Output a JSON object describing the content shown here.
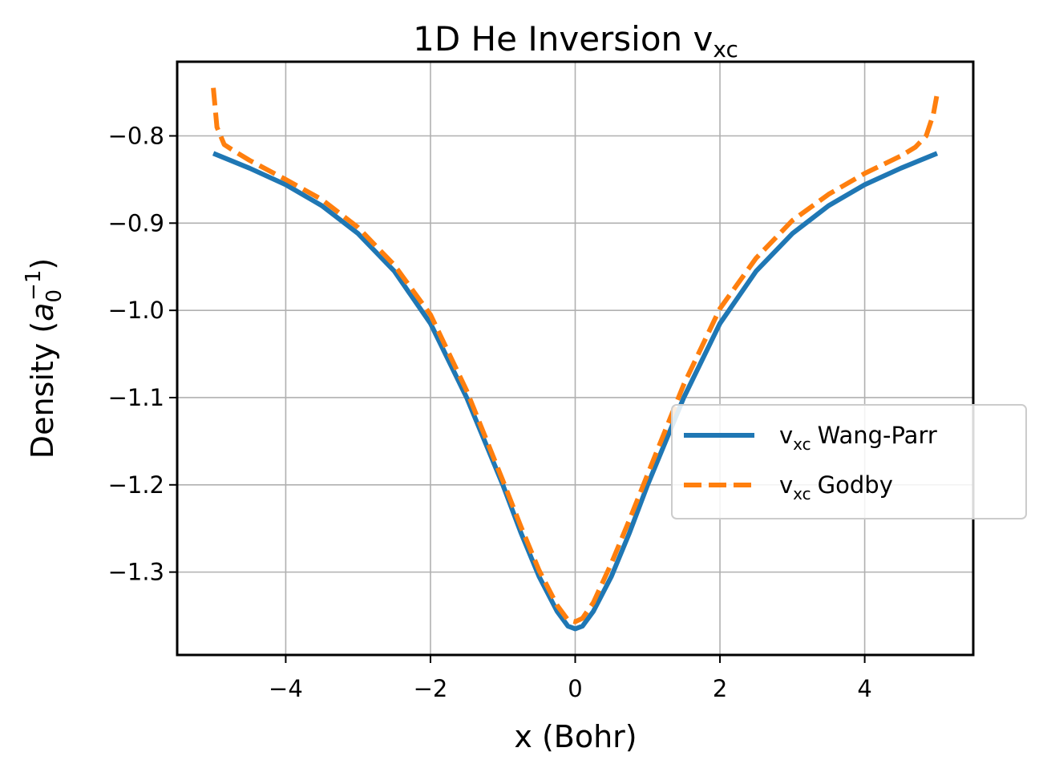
{
  "chart_data": {
    "type": "line",
    "title": "1D He Inversion v",
    "title_sub": "xc",
    "xlabel": "x (Bohr)",
    "ylabel_prefix": "Density (",
    "ylabel_base": "a",
    "ylabel_sub": "0",
    "ylabel_sup": "−1",
    "ylabel_suffix": ")",
    "xlim": [
      -5.5,
      5.5
    ],
    "ylim": [
      -1.395,
      -0.715
    ],
    "xticks": [
      -4,
      -2,
      0,
      2,
      4
    ],
    "xtick_labels": [
      "−4",
      "−2",
      "0",
      "2",
      "4"
    ],
    "yticks": [
      -0.8,
      -0.9,
      -1.0,
      -1.1,
      -1.2,
      -1.3
    ],
    "ytick_labels": [
      "−0.8",
      "−0.9",
      "−1.0",
      "−1.1",
      "−1.2",
      "−1.3"
    ],
    "grid": true,
    "legend_position": "center-right",
    "series": [
      {
        "name": "Wang-Parr",
        "name_prefix": "v",
        "name_sub": "xc",
        "color": "#1f77b4",
        "dash": "solid",
        "x": [
          -5.0,
          -4.5,
          -4.0,
          -3.5,
          -3.0,
          -2.5,
          -2.0,
          -1.5,
          -1.0,
          -0.75,
          -0.5,
          -0.25,
          -0.1,
          0.0,
          0.1,
          0.25,
          0.5,
          0.75,
          1.0,
          1.5,
          2.0,
          2.5,
          3.0,
          3.5,
          4.0,
          4.5,
          5.0
        ],
        "y": [
          -0.82,
          -0.837,
          -0.856,
          -0.88,
          -0.912,
          -0.955,
          -1.015,
          -1.1,
          -1.2,
          -1.255,
          -1.305,
          -1.345,
          -1.362,
          -1.365,
          -1.362,
          -1.345,
          -1.305,
          -1.255,
          -1.2,
          -1.1,
          -1.015,
          -0.955,
          -0.912,
          -0.88,
          -0.856,
          -0.837,
          -0.82
        ]
      },
      {
        "name": "Godby",
        "name_prefix": "v",
        "name_sub": "xc",
        "color": "#ff7f0e",
        "dash": "dashed",
        "x": [
          -5.0,
          -4.95,
          -4.85,
          -4.7,
          -4.5,
          -4.0,
          -3.5,
          -3.0,
          -2.5,
          -2.0,
          -1.5,
          -1.0,
          -0.75,
          -0.5,
          -0.25,
          -0.1,
          0.0,
          0.1,
          0.25,
          0.5,
          0.75,
          1.0,
          1.5,
          2.0,
          2.5,
          3.0,
          3.5,
          4.0,
          4.5,
          4.7,
          4.85,
          4.95,
          5.0
        ],
        "y": [
          -0.745,
          -0.79,
          -0.81,
          -0.818,
          -0.828,
          -0.85,
          -0.873,
          -0.905,
          -0.948,
          -1.005,
          -1.092,
          -1.195,
          -1.248,
          -1.298,
          -1.338,
          -1.355,
          -1.357,
          -1.353,
          -1.335,
          -1.29,
          -1.24,
          -1.188,
          -1.085,
          -0.998,
          -0.94,
          -0.897,
          -0.867,
          -0.843,
          -0.823,
          -0.813,
          -0.8,
          -0.775,
          -0.752
        ]
      }
    ]
  }
}
